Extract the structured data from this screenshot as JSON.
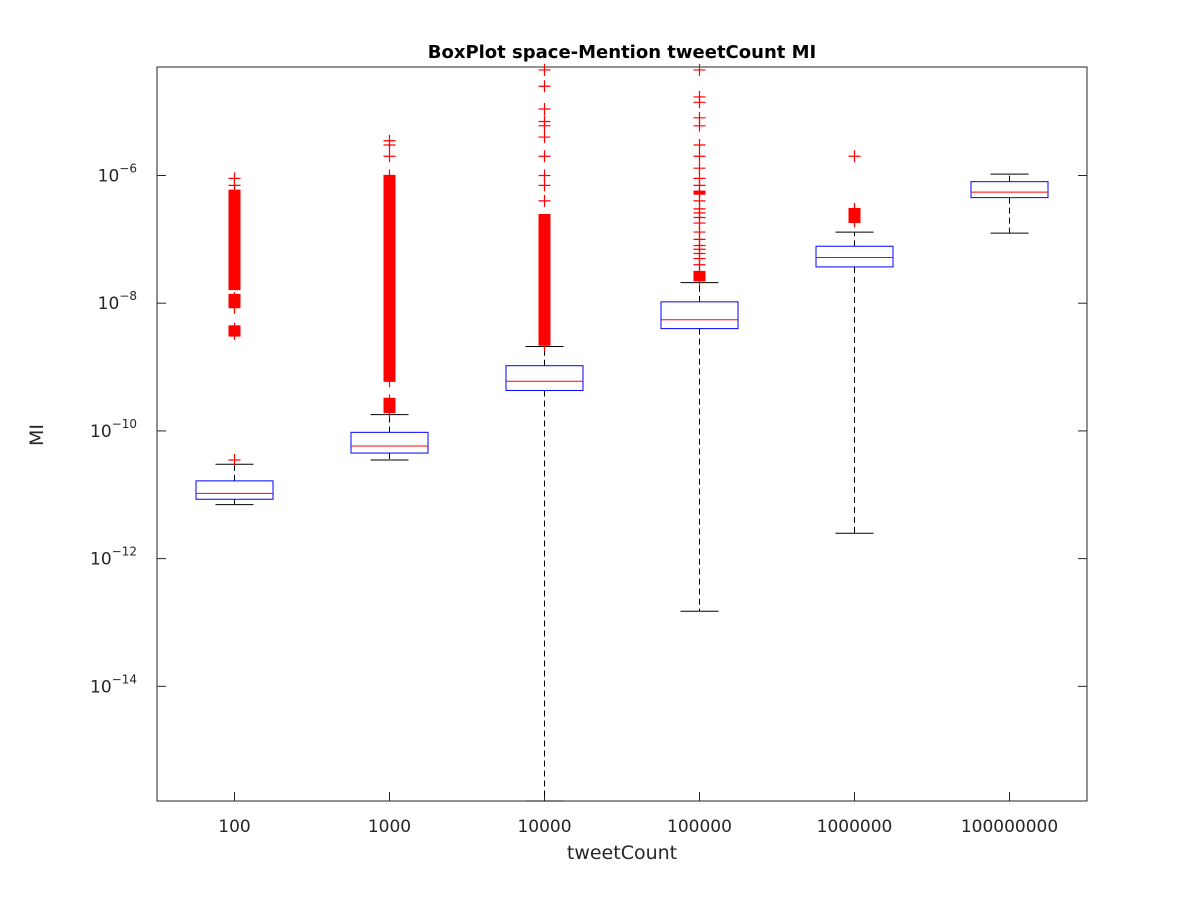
{
  "chart_data": {
    "type": "boxplot",
    "title": "BoxPlot space-Mention tweetCount MI",
    "xlabel": "tweetCount",
    "ylabel": "MI",
    "yscale": "log",
    "ylim": [
      1.6e-16,
      5e-05
    ],
    "yticks": [
      {
        "value": 1e-14,
        "base": "10",
        "exp": "−14"
      },
      {
        "value": 1e-12,
        "base": "10",
        "exp": "−12"
      },
      {
        "value": 1e-10,
        "base": "10",
        "exp": "−10"
      },
      {
        "value": 1e-08,
        "base": "10",
        "exp": "−8"
      },
      {
        "value": 1e-06,
        "base": "10",
        "exp": "−6"
      }
    ],
    "categories": [
      "100",
      "1000",
      "10000",
      "100000",
      "1000000",
      "100000000"
    ],
    "boxes": [
      {
        "category": "100",
        "whisker_low": 7e-12,
        "q1": 8.5e-12,
        "median": 1.05e-11,
        "q3": 1.65e-11,
        "whisker_high": 3e-11,
        "outliers": [
          3.5e-11,
          3.3e-09,
          4e-09,
          8.5e-09,
          1.2e-08,
          2e-08,
          5e-08,
          1e-07,
          2e-07,
          3.5e-07,
          5.5e-07,
          7e-07,
          9e-07
        ],
        "outlier_bands": [
          [
            3e-09,
            4.5e-09
          ],
          [
            8.5e-09,
            1.4e-08
          ],
          [
            1.6e-08,
            6e-07
          ]
        ]
      },
      {
        "category": "1000",
        "whisker_low": 3.5e-11,
        "q1": 4.5e-11,
        "median": 5.8e-11,
        "q3": 9.5e-11,
        "whisker_high": 1.8e-10,
        "outliers": [
          2e-10,
          3e-10,
          6e-10,
          1e-09,
          1e-08,
          1e-07,
          1e-06,
          2e-06,
          3e-06,
          3.5e-06
        ],
        "outlier_bands": [
          [
            1.9e-10,
            3.3e-10
          ],
          [
            6e-10,
            1e-06
          ]
        ]
      },
      {
        "category": "10000",
        "whisker_low": 1.6e-16,
        "q1": 4.3e-10,
        "median": 6e-10,
        "q3": 1.05e-09,
        "whisker_high": 2.1e-09,
        "outliers": [
          2.2e-09,
          5e-09,
          1e-08,
          5e-08,
          1e-07,
          2e-07,
          4e-07,
          7e-07,
          1e-06,
          2e-06,
          4e-06,
          6e-06,
          7e-06,
          1.1e-05,
          2.5e-05,
          4.5e-05
        ],
        "outlier_bands": [
          [
            2.2e-09,
            2.5e-07
          ]
        ]
      },
      {
        "category": "100000",
        "whisker_low": 1.5e-13,
        "q1": 4e-09,
        "median": 5.5e-09,
        "q3": 1.05e-08,
        "whisker_high": 2.1e-08,
        "outliers": [
          2.3e-08,
          2.7e-08,
          3e-08,
          4e-08,
          5e-08,
          6e-08,
          7e-08,
          8e-08,
          1e-07,
          1.3e-07,
          1.8e-07,
          2.2e-07,
          2.6e-07,
          3e-07,
          4e-07,
          5.5e-07,
          7e-07,
          9e-07,
          1.3e-06,
          2e-06,
          3e-06,
          6e-06,
          8e-06,
          1.4e-05,
          1.7e-05,
          4.5e-05
        ],
        "outlier_bands": [
          [
            2.2e-08,
            3.2e-08
          ],
          [
            5e-07,
            5.8e-07
          ]
        ]
      },
      {
        "category": "1000000",
        "whisker_low": 2.5e-12,
        "q1": 3.7e-08,
        "median": 5.2e-08,
        "q3": 7.8e-08,
        "whisker_high": 1.3e-07,
        "outliers": [
          1.9e-07,
          2.4e-07,
          2.8e-07,
          3e-07,
          2e-06
        ],
        "outlier_bands": [
          [
            1.8e-07,
            3.1e-07
          ]
        ]
      },
      {
        "category": "100000000",
        "whisker_low": 1.25e-07,
        "q1": 4.5e-07,
        "median": 5.5e-07,
        "q3": 8e-07,
        "whisker_high": 1.05e-06,
        "outliers": [],
        "outlier_bands": []
      }
    ],
    "colors": {
      "box": "#0000ff",
      "median": "#ff0000",
      "outlier": "#ff0000",
      "whisker": "#000000",
      "axes": "#262626"
    },
    "grid": false
  }
}
